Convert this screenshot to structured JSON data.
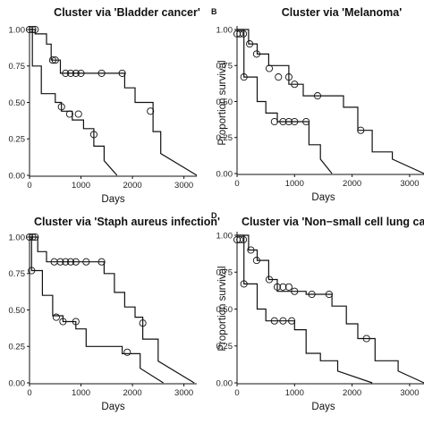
{
  "chart_data": [
    {
      "panel_label": "",
      "type": "line",
      "title": "Cluster via 'Bladder cancer'",
      "xlabel": "Days",
      "ylabel": "",
      "xlim": [
        0,
        3250
      ],
      "ylim": [
        0,
        1.0
      ],
      "xticks": [
        0,
        1000,
        2000,
        3000
      ],
      "xtick_labels": [
        "0",
        "1000",
        "2000",
        "3000"
      ],
      "yticks": [
        0,
        0.25,
        0.5,
        0.75,
        1.0
      ],
      "ytick_labels": [
        "0.00",
        "0.25",
        "0.50",
        "0.75",
        "1.00"
      ],
      "series": [
        {
          "x": [
            0,
            55,
            55,
            230,
            230,
            500,
            500,
            620,
            620,
            830,
            830,
            1050,
            1050,
            1250,
            1250,
            1450,
            1450,
            1700
          ],
          "y": [
            1.0,
            1.0,
            0.75,
            0.75,
            0.56,
            0.56,
            0.5,
            0.5,
            0.44,
            0.44,
            0.38,
            0.38,
            0.32,
            0.32,
            0.2,
            0.2,
            0.1,
            0.0
          ],
          "censor_x": [
            620,
            780,
            950,
            1250
          ],
          "censor_y": [
            0.47,
            0.42,
            0.42,
            0.28
          ]
        },
        {
          "x": [
            0,
            110,
            110,
            330,
            330,
            420,
            420,
            600,
            600,
            1850,
            1850,
            2050,
            2050,
            2400,
            2400,
            2550,
            2550,
            3250
          ],
          "y": [
            1.0,
            1.0,
            0.97,
            0.97,
            0.9,
            0.9,
            0.79,
            0.79,
            0.7,
            0.7,
            0.6,
            0.6,
            0.5,
            0.5,
            0.3,
            0.3,
            0.15,
            0.0
          ],
          "censor_x": [
            0,
            60,
            110,
            450,
            500,
            700,
            800,
            900,
            1000,
            1400,
            1800,
            2350
          ],
          "censor_y": [
            1.0,
            1.0,
            1.0,
            0.79,
            0.79,
            0.7,
            0.7,
            0.7,
            0.7,
            0.7,
            0.7,
            0.44
          ]
        }
      ]
    },
    {
      "panel_label": "B",
      "type": "line",
      "title": "Cluster via 'Melanoma'",
      "xlabel": "Days",
      "ylabel": "Proportion survival",
      "xlim": [
        0,
        3250
      ],
      "ylim": [
        0,
        1.0
      ],
      "xticks": [
        0,
        1000,
        2000,
        3000
      ],
      "xtick_labels": [
        "0",
        "1000",
        "2000",
        "3000"
      ],
      "yticks": [
        0,
        0.25,
        0.5,
        0.75,
        1.0
      ],
      "ytick_labels": [
        "0.00",
        "0.25",
        "0.50",
        "0.75",
        "1.00"
      ],
      "series": [
        {
          "x": [
            0,
            120,
            120,
            350,
            350,
            500,
            500,
            700,
            700,
            1250,
            1250,
            1450,
            1450,
            1650
          ],
          "y": [
            1.0,
            1.0,
            0.67,
            0.67,
            0.5,
            0.5,
            0.42,
            0.42,
            0.36,
            0.36,
            0.2,
            0.2,
            0.1,
            0.0
          ],
          "censor_x": [
            120,
            650,
            800,
            900,
            1000,
            1200
          ],
          "censor_y": [
            0.67,
            0.36,
            0.36,
            0.36,
            0.36,
            0.36
          ]
        },
        {
          "x": [
            0,
            200,
            200,
            350,
            350,
            550,
            550,
            900,
            900,
            1150,
            1150,
            1850,
            1850,
            2100,
            2100,
            2350,
            2350,
            2700,
            2700,
            3250
          ],
          "y": [
            1.0,
            1.0,
            0.9,
            0.9,
            0.83,
            0.83,
            0.75,
            0.75,
            0.62,
            0.62,
            0.54,
            0.54,
            0.46,
            0.46,
            0.3,
            0.3,
            0.15,
            0.15,
            0.1,
            0.0
          ],
          "censor_x": [
            0,
            50,
            110,
            220,
            340,
            560,
            720,
            900,
            1000,
            1400,
            2150
          ],
          "censor_y": [
            0.97,
            0.97,
            0.97,
            0.9,
            0.83,
            0.73,
            0.67,
            0.67,
            0.62,
            0.54,
            0.3
          ]
        }
      ]
    },
    {
      "panel_label": "",
      "type": "line",
      "title": "Cluster via 'Staph aureus infection'",
      "xlabel": "Days",
      "ylabel": "",
      "xlim": [
        0,
        3250
      ],
      "ylim": [
        0,
        1.0
      ],
      "xticks": [
        0,
        1000,
        2000,
        3000
      ],
      "xtick_labels": [
        "0",
        "1000",
        "2000",
        "3000"
      ],
      "yticks": [
        0,
        0.25,
        0.5,
        0.75,
        1.0
      ],
      "ytick_labels": [
        "0.00",
        "0.25",
        "0.50",
        "0.75",
        "1.00"
      ],
      "series": [
        {
          "x": [
            0,
            40,
            40,
            250,
            250,
            450,
            450,
            650,
            650,
            900,
            900,
            1100,
            1100,
            1800,
            1800,
            2150,
            2150,
            2600
          ],
          "y": [
            1.0,
            1.0,
            0.77,
            0.77,
            0.6,
            0.6,
            0.46,
            0.46,
            0.42,
            0.42,
            0.37,
            0.37,
            0.25,
            0.25,
            0.2,
            0.2,
            0.1,
            0.0
          ],
          "censor_x": [
            40,
            520,
            650,
            900,
            1900
          ],
          "censor_y": [
            0.77,
            0.45,
            0.42,
            0.42,
            0.21
          ]
        },
        {
          "x": [
            0,
            160,
            160,
            330,
            330,
            1450,
            1450,
            1650,
            1650,
            1850,
            1850,
            2050,
            2050,
            2200,
            2200,
            2500,
            2500,
            3200
          ],
          "y": [
            1.0,
            1.0,
            0.9,
            0.9,
            0.83,
            0.83,
            0.75,
            0.75,
            0.62,
            0.62,
            0.52,
            0.52,
            0.45,
            0.45,
            0.3,
            0.3,
            0.15,
            0.0
          ],
          "censor_x": [
            0,
            60,
            110,
            480,
            600,
            700,
            800,
            900,
            1100,
            1400,
            2200
          ],
          "censor_y": [
            1.0,
            1.0,
            1.0,
            0.83,
            0.83,
            0.83,
            0.83,
            0.83,
            0.83,
            0.83,
            0.41
          ]
        }
      ]
    },
    {
      "panel_label": "D",
      "type": "line",
      "title": "Cluster via 'Non−small cell lung canc",
      "xlabel": "Days",
      "ylabel": "Proportion survival",
      "xlim": [
        0,
        3250
      ],
      "ylim": [
        0,
        1.0
      ],
      "xticks": [
        0,
        1000,
        2000,
        3000
      ],
      "xtick_labels": [
        "0",
        "1000",
        "2000",
        "3000"
      ],
      "yticks": [
        0,
        0.25,
        0.5,
        0.75,
        1.0
      ],
      "ytick_labels": [
        "0.00",
        "0.25",
        "0.50",
        "0.75",
        "1.00"
      ],
      "series": [
        {
          "x": [
            0,
            120,
            120,
            350,
            350,
            500,
            500,
            1000,
            1000,
            1200,
            1200,
            1450,
            1450,
            1750,
            1750,
            2350
          ],
          "y": [
            1.0,
            1.0,
            0.67,
            0.67,
            0.5,
            0.5,
            0.42,
            0.42,
            0.36,
            0.36,
            0.2,
            0.2,
            0.15,
            0.15,
            0.08,
            0.0
          ],
          "censor_x": [
            120,
            650,
            800,
            950
          ],
          "censor_y": [
            0.67,
            0.42,
            0.42,
            0.42
          ]
        },
        {
          "x": [
            0,
            200,
            200,
            350,
            350,
            550,
            550,
            700,
            700,
            1200,
            1200,
            1650,
            1650,
            1900,
            1900,
            2100,
            2100,
            2400,
            2400,
            2800,
            2800,
            3250
          ],
          "y": [
            1.0,
            1.0,
            0.9,
            0.9,
            0.83,
            0.83,
            0.7,
            0.7,
            0.62,
            0.62,
            0.6,
            0.6,
            0.52,
            0.52,
            0.4,
            0.4,
            0.3,
            0.3,
            0.15,
            0.15,
            0.08,
            0.0
          ],
          "censor_x": [
            0,
            50,
            110,
            240,
            340,
            560,
            700,
            800,
            900,
            1000,
            1300,
            1600,
            2250
          ],
          "censor_y": [
            0.97,
            0.97,
            0.97,
            0.9,
            0.83,
            0.7,
            0.65,
            0.65,
            0.65,
            0.62,
            0.6,
            0.6,
            0.3
          ]
        }
      ]
    }
  ]
}
